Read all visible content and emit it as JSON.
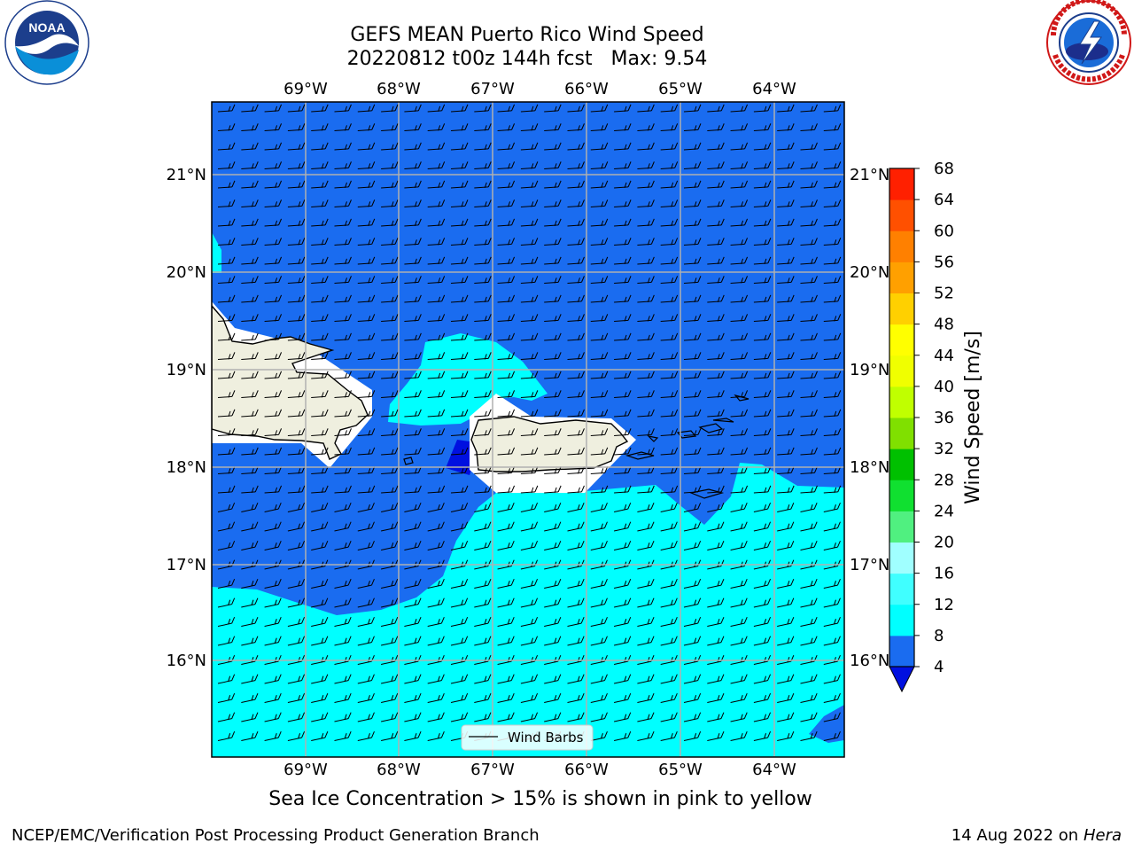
{
  "title_line1": "GEFS MEAN Puerto Rico Wind Speed",
  "title_line2": "20220812 t00z 144h fcst   Max: 9.54",
  "lon_labels": [
    "69°W",
    "68°W",
    "67°W",
    "66°W",
    "65°W",
    "64°W"
  ],
  "lat_labels": [
    "21°N",
    "20°N",
    "19°N",
    "18°N",
    "17°N",
    "16°N"
  ],
  "colorbar": {
    "label": "Wind Speed [m/s]",
    "ticks": [
      "4",
      "8",
      "12",
      "16",
      "20",
      "24",
      "28",
      "32",
      "36",
      "40",
      "44",
      "48",
      "52",
      "56",
      "60",
      "64",
      "68"
    ],
    "colors": [
      "#1a6cf0",
      "#00ffff",
      "#40ffff",
      "#a0ffff",
      "#50f080",
      "#10e030",
      "#00c000",
      "#80e000",
      "#c0ff00",
      "#f0ff00",
      "#ffff00",
      "#ffd000",
      "#ffa000",
      "#ff8000",
      "#ff5000",
      "#ff2000"
    ],
    "under_color": "#0010e0"
  },
  "legend": {
    "label": "Wind Barbs"
  },
  "caption": "Sea Ice Concentration > 15% is shown in pink to yellow",
  "footer_left": "NCEP/EMC/Verification Post Processing Product Generation Branch",
  "footer_right_prefix": "14 Aug 2022 on",
  "footer_right_machine": "Hera",
  "logos": {
    "left": "NOAA",
    "right_icon": "national-weather-service-logo"
  }
}
